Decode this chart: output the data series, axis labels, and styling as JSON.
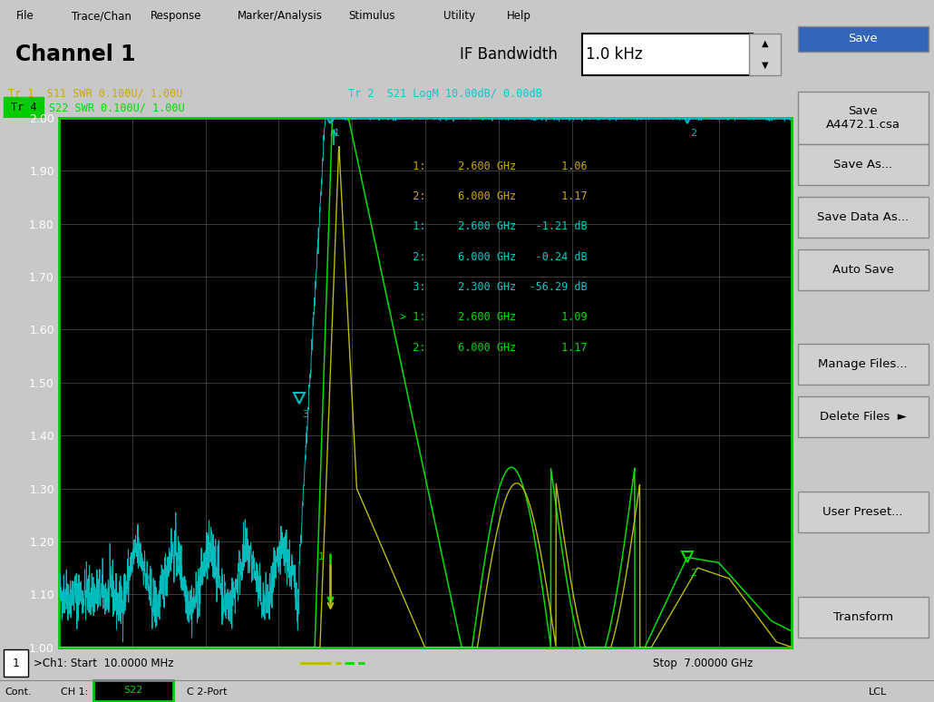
{
  "title_left": "Channel 1",
  "title_right": "IF Bandwidth",
  "if_bw": "1.0 kHz",
  "menu_items": [
    "File",
    "Trace/Chan",
    "Response",
    "Marker/Analysis",
    "Stimulus",
    "Utility",
    "Help"
  ],
  "tr1_label": "Tr 1  S11 SWR 0.100U/ 1.00U",
  "tr2_label": "Tr 2  S21 LogM 10.00dB/ 0.00dB",
  "tr4_label": "S22 SWR 0.100U/ 1.00U",
  "tr4_box": "Tr 4",
  "start_label": ">Ch1: Start  10.0000 MHz",
  "stop_label": "Stop  7.00000 GHz",
  "ymin": 1.0,
  "ymax": 2.0,
  "ytick_labels": [
    "1.00",
    "1.10",
    "1.20",
    "1.30",
    "1.40",
    "1.50",
    "1.60",
    "1.70",
    "1.80",
    "1.90",
    "2.00"
  ],
  "ytick_vals": [
    1.0,
    1.1,
    1.2,
    1.3,
    1.4,
    1.5,
    1.6,
    1.7,
    1.8,
    1.9,
    2.0
  ],
  "xmin": 0.01,
  "xmax": 7.0,
  "tr1_color": "#00bbbb",
  "tr2_color": "#bbbb00",
  "tr4_color": "#00dd00",
  "grid_color": "#444444",
  "ann_gold": "#ccaa00",
  "ann_cyan": "#00cccc",
  "ann_green": "#00dd00",
  "bg_panel": "#c8c8c8",
  "bg_plot": "#000000",
  "save_btn_color": "#3366bb",
  "btn_bg": "#d0d0d0",
  "ann_lines": [
    {
      "text": "  1:     2.600 GHz       1.06",
      "color": "#ccaa00"
    },
    {
      "text": "  2:     6.000 GHz       1.17",
      "color": "#ccaa00"
    },
    {
      "text": "  1:     2.600 GHz   -1.21 dB",
      "color": "#00cccc"
    },
    {
      "text": "  2:     6.000 GHz   -0.24 dB",
      "color": "#00cccc"
    },
    {
      "text": "  3:     2.300 GHz  -56.29 dB",
      "color": "#00cccc"
    },
    {
      "text": "> 1:     2.600 GHz       1.09",
      "color": "#00dd00"
    },
    {
      "text": "  2:     6.000 GHz       1.17",
      "color": "#00dd00"
    }
  ],
  "save_buttons": [
    {
      "label": "Save",
      "blue": true
    },
    {
      "label": "Save\nA4472.1.csa",
      "blue": false
    },
    {
      "label": "Save As...",
      "blue": false
    },
    {
      "label": "Save Data As...",
      "blue": false
    },
    {
      "label": "Auto Save",
      "blue": false
    },
    {
      "label": "",
      "blue": false
    },
    {
      "label": "Manage Files...",
      "blue": false
    },
    {
      "label": "Delete Files  ►",
      "blue": false
    },
    {
      "label": "",
      "blue": false
    },
    {
      "label": "User Preset...",
      "blue": false
    },
    {
      "label": "",
      "blue": false
    },
    {
      "label": "Transform",
      "blue": false
    }
  ]
}
